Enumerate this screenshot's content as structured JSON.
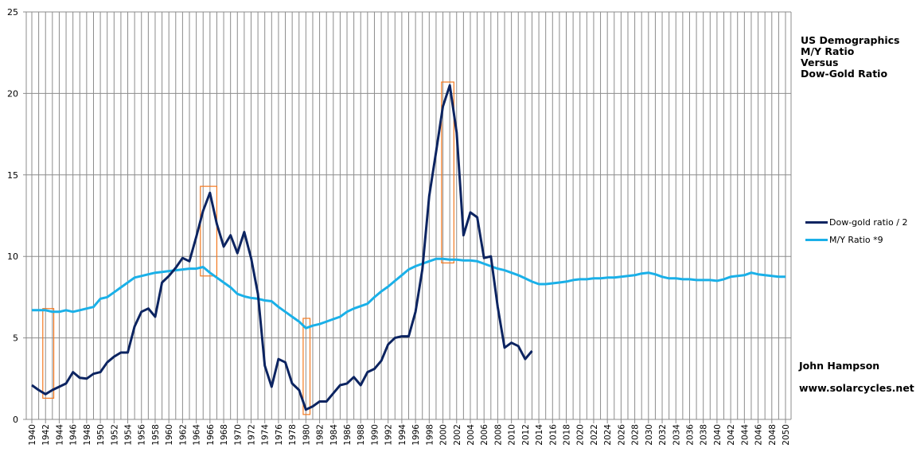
{
  "chart_data": {
    "type": "line",
    "title": "US Demographics M/Y Ratio Versus Dow-Gold Ratio",
    "title_lines": [
      "US Demographics",
      "M/Y Ratio",
      "Versus",
      "Dow-Gold Ratio"
    ],
    "xlabel": "",
    "ylabel": "",
    "xlim": [
      1940,
      2050
    ],
    "ylim": [
      0,
      25
    ],
    "yticks": [
      0,
      5,
      10,
      15,
      20,
      25
    ],
    "grid": true,
    "legend_position": "right",
    "series": [
      {
        "name": "Dow-gold ratio / 2",
        "color": "#0c2461",
        "x_start": 1940,
        "values": [
          2.1,
          1.8,
          1.55,
          1.8,
          2.0,
          2.2,
          2.9,
          2.55,
          2.5,
          2.8,
          2.9,
          3.5,
          3.85,
          4.1,
          4.1,
          5.7,
          6.6,
          6.8,
          6.3,
          8.4,
          8.8,
          9.3,
          9.9,
          9.7,
          11.2,
          12.8,
          13.9,
          12.0,
          10.6,
          11.3,
          10.2,
          11.5,
          9.9,
          7.7,
          3.3,
          2.0,
          3.7,
          3.5,
          2.2,
          1.8,
          0.6,
          0.8,
          1.1,
          1.1,
          1.6,
          2.1,
          2.2,
          2.6,
          2.1,
          2.9,
          3.1,
          3.6,
          4.6,
          5.0,
          5.1,
          5.1,
          6.6,
          9.2,
          13.7,
          16.4,
          19.2,
          20.5,
          17.6,
          11.3,
          12.7,
          12.4,
          9.9,
          10.0,
          6.9,
          4.4,
          4.7,
          4.5,
          3.7,
          4.2
        ]
      },
      {
        "name": "M/Y Ratio *9",
        "color": "#1ab0e8",
        "x_start": 1940,
        "values": [
          6.7,
          6.7,
          6.7,
          6.6,
          6.6,
          6.7,
          6.6,
          6.7,
          6.8,
          6.9,
          7.4,
          7.5,
          7.8,
          8.1,
          8.4,
          8.7,
          8.8,
          8.9,
          9.0,
          9.05,
          9.1,
          9.15,
          9.2,
          9.25,
          9.25,
          9.35,
          9.0,
          8.7,
          8.4,
          8.1,
          7.7,
          7.55,
          7.45,
          7.4,
          7.3,
          7.25,
          6.9,
          6.6,
          6.3,
          6.0,
          5.6,
          5.75,
          5.85,
          6.0,
          6.15,
          6.3,
          6.6,
          6.8,
          6.95,
          7.1,
          7.5,
          7.85,
          8.15,
          8.5,
          8.85,
          9.2,
          9.4,
          9.55,
          9.7,
          9.85,
          9.85,
          9.8,
          9.8,
          9.75,
          9.75,
          9.7,
          9.55,
          9.4,
          9.25,
          9.15,
          9.0,
          8.85,
          8.65,
          8.45,
          8.3,
          8.3,
          8.35,
          8.4,
          8.45,
          8.55,
          8.6,
          8.6,
          8.65,
          8.65,
          8.7,
          8.7,
          8.75,
          8.8,
          8.85,
          8.95,
          9.0,
          8.9,
          8.75,
          8.65,
          8.65,
          8.6,
          8.6,
          8.55,
          8.55,
          8.55,
          8.5,
          8.6,
          8.75,
          8.8,
          8.85,
          9.0,
          8.9,
          8.85,
          8.8,
          8.75,
          8.75
        ]
      }
    ],
    "highlight_boxes": [
      {
        "year_from": 1941.6,
        "year_to": 1943.2,
        "y_from": 1.3,
        "y_to": 6.8,
        "color": "#f47920"
      },
      {
        "year_from": 1964.6,
        "year_to": 1967.0,
        "y_from": 8.8,
        "y_to": 14.3,
        "color": "#f47920"
      },
      {
        "year_from": 1979.6,
        "year_to": 1980.6,
        "y_from": 0.3,
        "y_to": 6.2,
        "color": "#f47920"
      },
      {
        "year_from": 1999.8,
        "year_to": 2001.6,
        "y_from": 9.6,
        "y_to": 20.7,
        "color": "#f47920"
      }
    ]
  },
  "credits": {
    "author": "John Hampson",
    "website": "www.solarcycles.net"
  }
}
